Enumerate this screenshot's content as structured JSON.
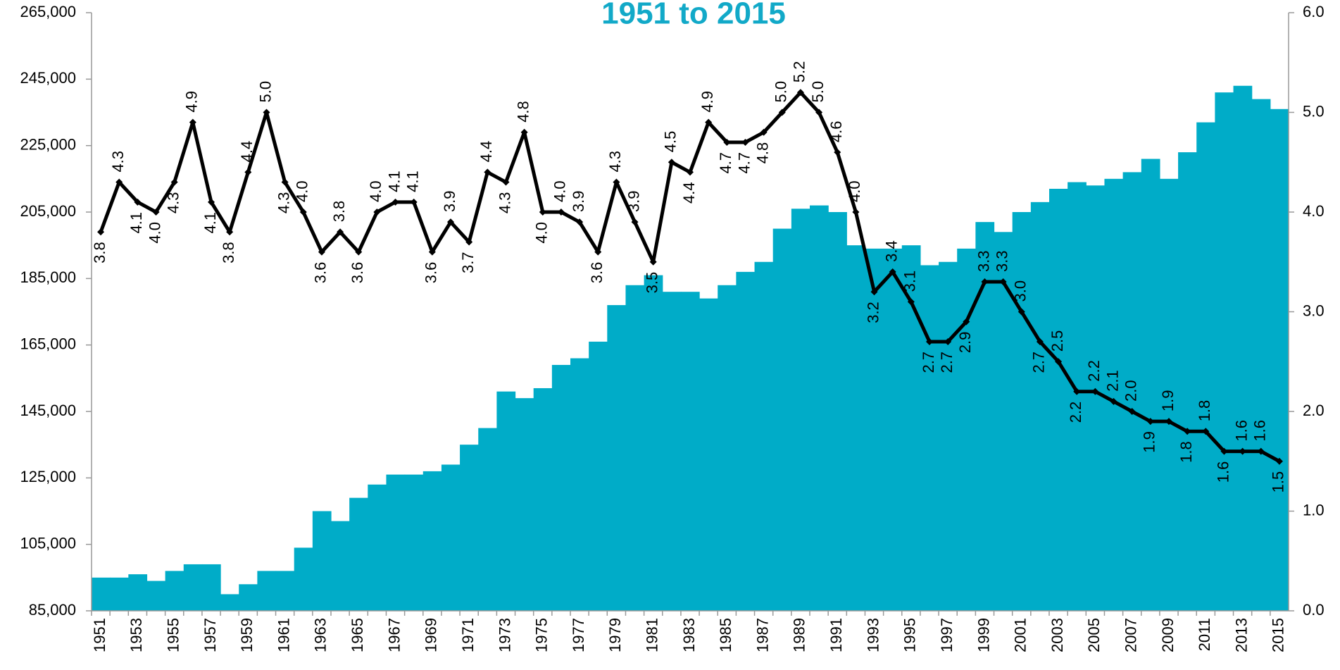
{
  "chart_data": {
    "type": "bar-line",
    "title": "1951 to 2015",
    "title_color": "#12a9c8",
    "categories": [
      "1951",
      null,
      "1953",
      null,
      "1955",
      null,
      "1957",
      null,
      "1959",
      null,
      "1961",
      null,
      "1963",
      null,
      "1965",
      null,
      "1967",
      null,
      "1969",
      null,
      "1971",
      null,
      "1973",
      null,
      "1975",
      null,
      "1977",
      null,
      "1979",
      null,
      "1981",
      null,
      "1983",
      null,
      "1985",
      null,
      "1987",
      null,
      "1989",
      null,
      "1991",
      null,
      "1993",
      null,
      "1995",
      null,
      "1997",
      null,
      "1999",
      null,
      "2001",
      null,
      "2003",
      null,
      "2005",
      null,
      "2007",
      null,
      "2009",
      null,
      "2011",
      null,
      "2013",
      null,
      "2015"
    ],
    "series": [
      {
        "type": "bar",
        "color": "#00acc8",
        "values": [
          95000,
          95000,
          96000,
          94000,
          97000,
          99000,
          99000,
          90000,
          93000,
          97000,
          97000,
          104000,
          115000,
          112000,
          119000,
          123000,
          126000,
          126000,
          127000,
          129000,
          135000,
          140000,
          151000,
          149000,
          152000,
          159000,
          161000,
          166000,
          177000,
          183000,
          186000,
          181000,
          181000,
          179000,
          183000,
          187000,
          190000,
          200000,
          206000,
          207000,
          205000,
          195000,
          194000,
          194000,
          195000,
          189000,
          190000,
          194000,
          202000,
          199000,
          205000,
          208000,
          212000,
          214000,
          213000,
          215000,
          217000,
          221000,
          215000,
          223000,
          232000,
          241000,
          243000,
          239000,
          236000
        ]
      },
      {
        "type": "line",
        "axis": "y2",
        "color": "#000000",
        "values": [
          3.8,
          4.3,
          4.1,
          4.0,
          4.3,
          4.9,
          4.1,
          3.8,
          4.4,
          5.0,
          4.3,
          4.0,
          3.6,
          3.8,
          3.6,
          4.0,
          4.1,
          4.1,
          3.6,
          3.9,
          3.7,
          4.4,
          4.3,
          4.8,
          4.0,
          4.0,
          3.9,
          3.6,
          4.3,
          3.9,
          3.5,
          4.5,
          4.4,
          4.9,
          4.7,
          4.7,
          4.8,
          5.0,
          5.2,
          5.0,
          4.6,
          4.0,
          3.2,
          3.4,
          3.1,
          2.7,
          2.7,
          2.9,
          3.3,
          3.3,
          3.0,
          2.7,
          2.5,
          2.2,
          2.2,
          2.1,
          2.0,
          1.9,
          1.9,
          1.8,
          1.8,
          1.6,
          1.6,
          1.6,
          1.5
        ],
        "value_labels": [
          "3.8",
          "4.3",
          "4.1",
          "4.0",
          "4.3",
          "4.9",
          "4.1",
          "3.8",
          "4.4",
          "5.0",
          "4.3",
          "4.0",
          "3.6",
          "3.8",
          "3.6",
          "4.0",
          "4.1",
          "4.1",
          "3.6",
          "3.9",
          "3.7",
          "4.4",
          "4.3",
          "4.8",
          "4.0",
          "4.0",
          "3.9",
          "3.6",
          "4.3",
          "3.9",
          "3.5",
          "4.5",
          "4.4",
          "4.9",
          "4.7",
          "4.7",
          "4.8",
          "5.0",
          "5.2",
          "5.0",
          "4.6",
          "4.0",
          "3.2",
          "3.4",
          "3.1",
          "2.7",
          "2.7",
          "2.9",
          "3.3",
          "3.3",
          "3.0",
          "2.7",
          "2.5",
          "2.2",
          "2.2",
          "2.1",
          "2.0",
          "1.9",
          "1.9",
          "1.8",
          "1.8",
          "1.6",
          "1.6",
          "1.6",
          "1.5"
        ]
      }
    ],
    "ylim": [
      85000,
      265000
    ],
    "yticks": [
      {
        "value": 85000,
        "label": "85,000"
      },
      {
        "value": 105000,
        "label": "105,000"
      },
      {
        "value": 125000,
        "label": "125,000"
      },
      {
        "value": 145000,
        "label": "145,000"
      },
      {
        "value": 165000,
        "label": "165,000"
      },
      {
        "value": 185000,
        "label": "185,000"
      },
      {
        "value": 205000,
        "label": "205,000"
      },
      {
        "value": 225000,
        "label": "225,000"
      },
      {
        "value": 245000,
        "label": "245,000"
      },
      {
        "value": 265000,
        "label": "265,000"
      }
    ],
    "y2lim": [
      0,
      6
    ],
    "y2ticks": [
      {
        "value": 0,
        "label": "0.0"
      },
      {
        "value": 1,
        "label": "1.0"
      },
      {
        "value": 2,
        "label": "2.0"
      },
      {
        "value": 3,
        "label": "3.0"
      },
      {
        "value": 4,
        "label": "4.0"
      },
      {
        "value": 5,
        "label": "5.0"
      },
      {
        "value": 6,
        "label": "6.0"
      }
    ]
  }
}
